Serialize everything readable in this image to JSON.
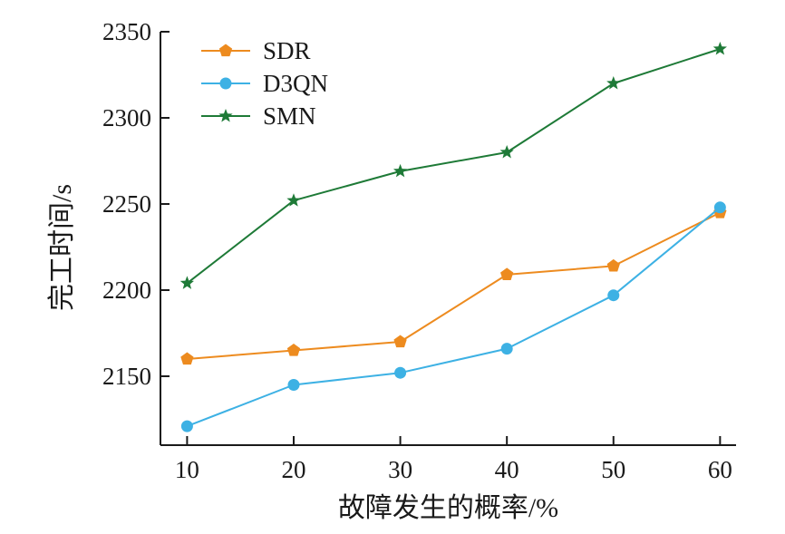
{
  "chart_data": {
    "type": "line",
    "xlabel": "故障发生的概率/%",
    "ylabel": "完工时间/s",
    "x": [
      10,
      20,
      30,
      40,
      50,
      60
    ],
    "x_ticks": [
      "10",
      "20",
      "30",
      "40",
      "50",
      "60"
    ],
    "xlim": [
      7.5,
      61.5
    ],
    "y_ticks": [
      "2150",
      "2200",
      "2250",
      "2300",
      "2350"
    ],
    "ylim": [
      2110,
      2350
    ],
    "grid": false,
    "legend_position": "top-left",
    "series": [
      {
        "name": "SDR",
        "color": "#ED8B1F",
        "marker": "pentagon",
        "values": [
          2160,
          2165,
          2170,
          2209,
          2214,
          2245
        ]
      },
      {
        "name": "D3QN",
        "color": "#3DB1E4",
        "marker": "circle",
        "values": [
          2121,
          2145,
          2152,
          2166,
          2197,
          2248
        ]
      },
      {
        "name": "SMN",
        "color": "#1E7A37",
        "marker": "star",
        "values": [
          2204,
          2252,
          2269,
          2280,
          2320,
          2340
        ]
      }
    ]
  }
}
